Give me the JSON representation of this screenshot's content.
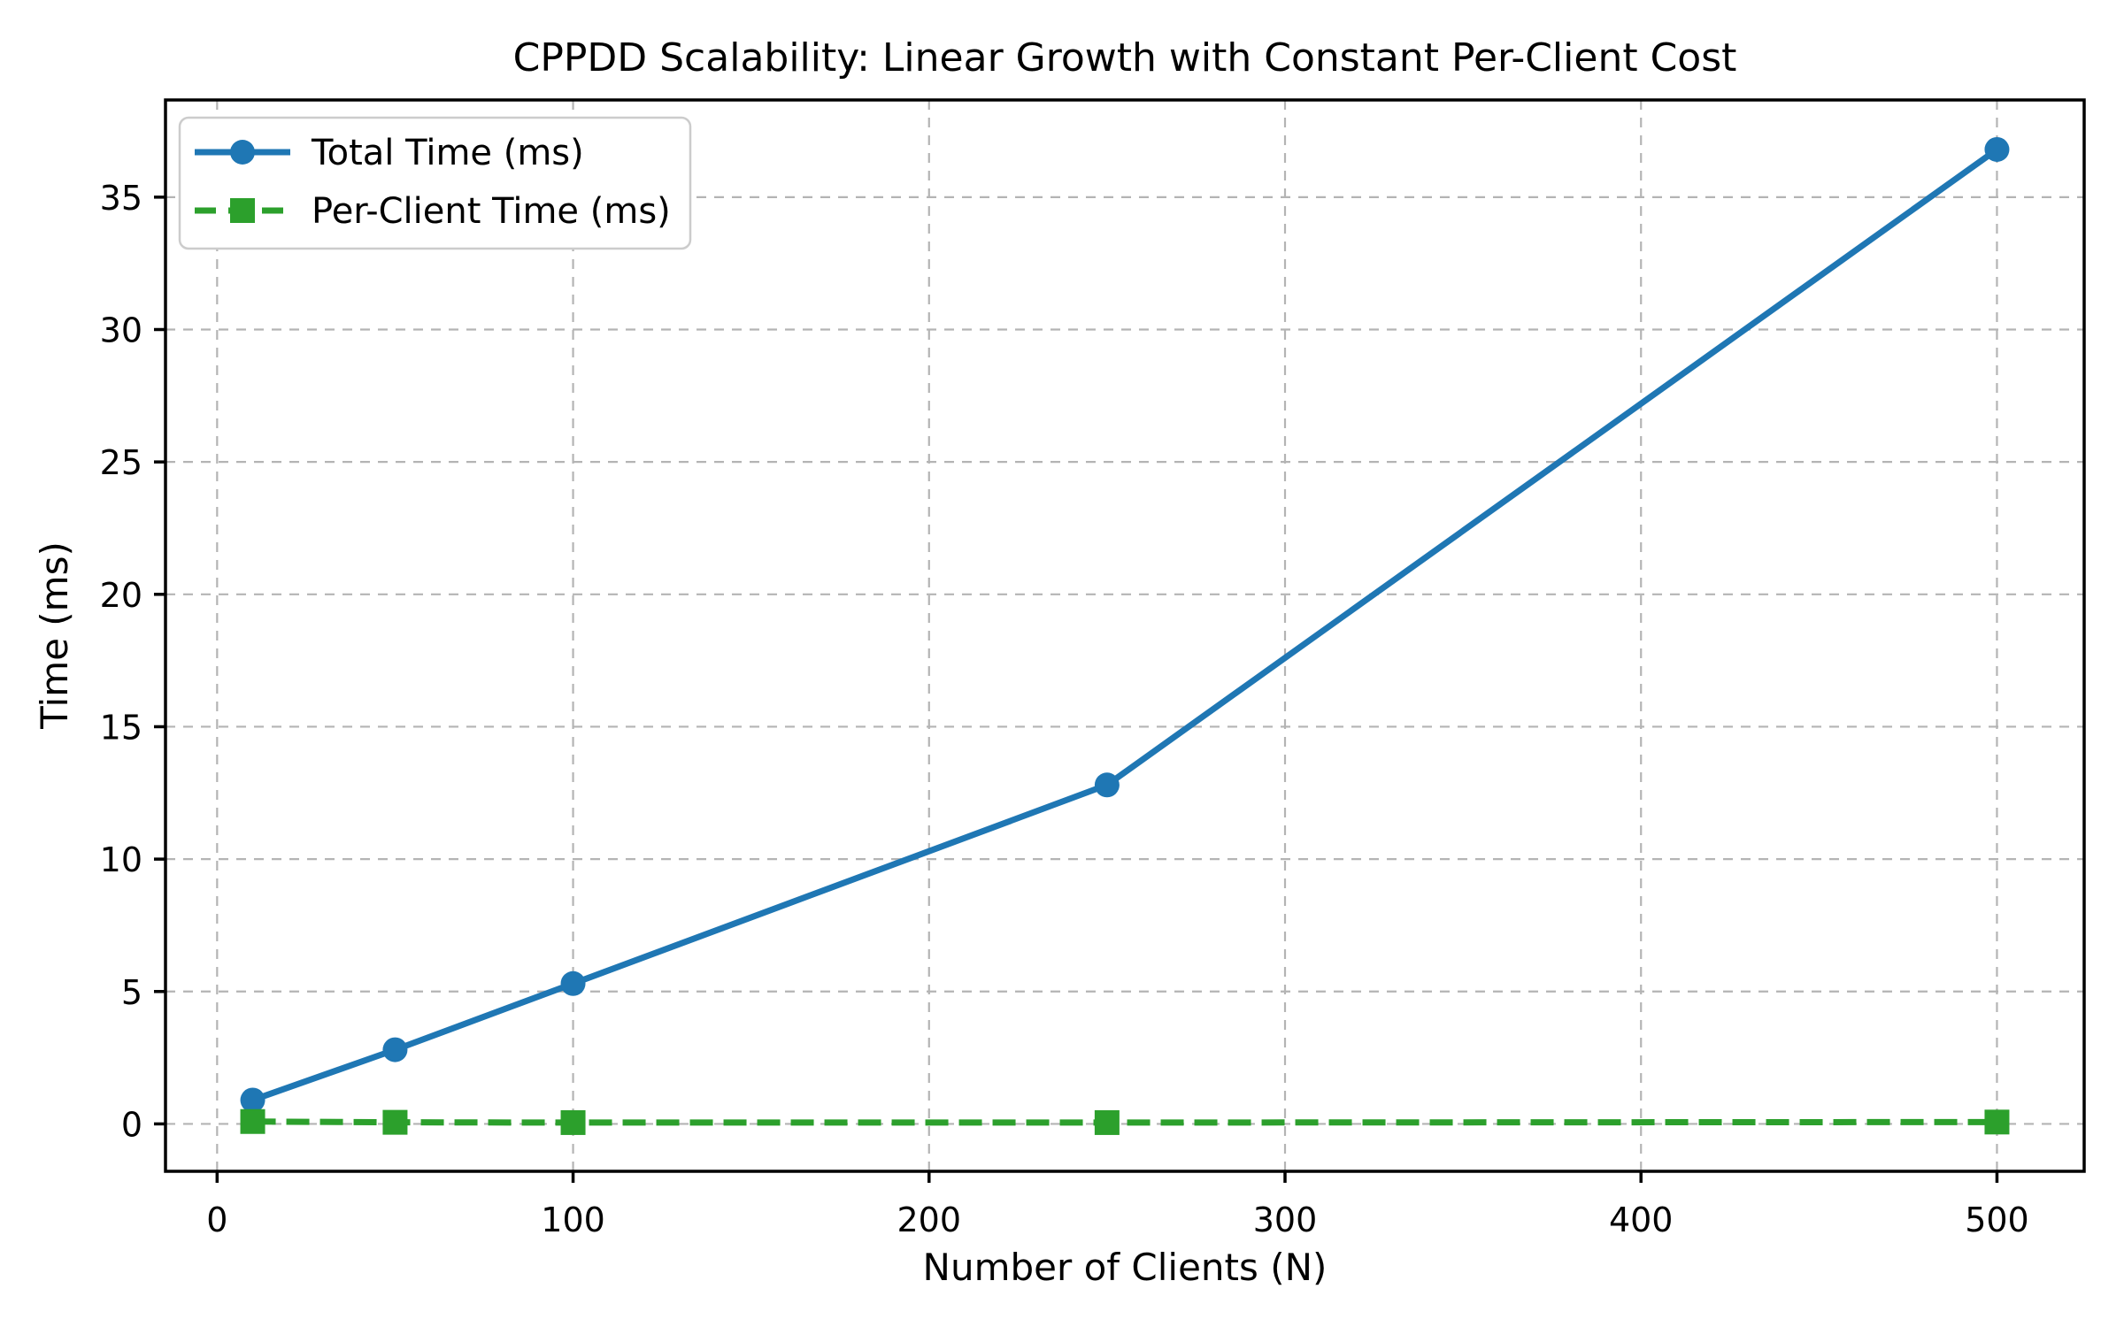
{
  "chart_data": {
    "type": "line",
    "title": "CPPDD Scalability: Linear Growth with Constant Per-Client Cost",
    "xlabel": "Number of Clients (N)",
    "ylabel": "Time (ms)",
    "x": [
      10,
      50,
      100,
      250,
      500
    ],
    "series": [
      {
        "name": "Total Time (ms)",
        "values": [
          0.9,
          2.8,
          5.3,
          12.8,
          36.8
        ],
        "color": "#1f77b4",
        "line_style": "solid",
        "marker": "circle"
      },
      {
        "name": "Per-Client Time (ms)",
        "values": [
          0.09,
          0.06,
          0.05,
          0.05,
          0.07
        ],
        "color": "#2ca02c",
        "line_style": "dashed",
        "marker": "square"
      }
    ],
    "xlim": [
      -14.5,
      524.5
    ],
    "ylim": [
      -1.79,
      38.67
    ],
    "xticks": [
      0,
      100,
      200,
      300,
      400,
      500
    ],
    "yticks": [
      0,
      5,
      10,
      15,
      20,
      25,
      30,
      35
    ],
    "grid": true,
    "grid_style": "dashed",
    "grid_color": "#b4b4b4",
    "legend_position": "upper-left",
    "background": "#ffffff"
  }
}
